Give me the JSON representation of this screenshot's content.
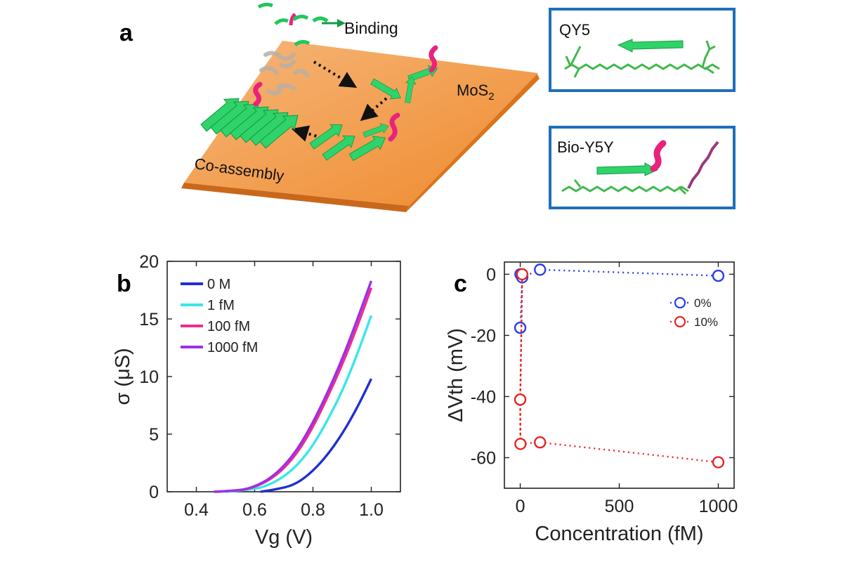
{
  "panel_a": {
    "letter": "a",
    "binding_label": "Binding",
    "substrate_label": "MoS",
    "substrate_subscript": "2",
    "coassembly_label": "Co-assembly",
    "box1_title": "QY5",
    "box2_title": "Bio-Y5Y",
    "colors": {
      "peptide": "#22c75a",
      "biotin": "#e8237d",
      "substrate": "#f0913a",
      "frame": "#1f6fb8"
    }
  },
  "panel_b": {
    "letter": "b"
  },
  "panel_c": {
    "letter": "c"
  },
  "chart_data": [
    {
      "id": "b",
      "type": "line",
      "xlabel": "Vg (V)",
      "ylabel": "σ (μS)",
      "xlim": [
        0.3,
        1.1
      ],
      "ylim": [
        0,
        20
      ],
      "xticks": [
        0.4,
        0.6,
        0.8,
        1.0
      ],
      "xtick_labels": [
        "0.4",
        "0.6",
        "0.8",
        "1.0"
      ],
      "yticks": [
        0,
        5,
        10,
        15,
        20
      ],
      "ytick_labels": [
        "0",
        "5",
        "10",
        "15",
        "20"
      ],
      "grid": false,
      "legend_position": "top-left",
      "series": [
        {
          "name": "0 M",
          "color": "#1f2fd4",
          "x": [
            0.62,
            0.7,
            0.75,
            0.8,
            0.85,
            0.9,
            0.95,
            1.0
          ],
          "y": [
            0.0,
            0.3,
            0.8,
            1.8,
            3.2,
            5.0,
            7.2,
            9.8
          ]
        },
        {
          "name": "1 fM",
          "color": "#38e6ea",
          "x": [
            0.5,
            0.6,
            0.65,
            0.7,
            0.75,
            0.8,
            0.85,
            0.9,
            0.95,
            1.0
          ],
          "y": [
            0.0,
            0.2,
            0.6,
            1.3,
            2.4,
            4.0,
            6.2,
            8.7,
            11.8,
            15.3
          ]
        },
        {
          "name": "100 fM",
          "color": "#ee2d8e",
          "x": [
            0.47,
            0.55,
            0.6,
            0.65,
            0.7,
            0.75,
            0.8,
            0.85,
            0.9,
            0.95,
            1.0
          ],
          "y": [
            0.0,
            0.1,
            0.4,
            1.0,
            2.0,
            3.5,
            5.6,
            8.2,
            11.0,
            14.2,
            17.7
          ]
        },
        {
          "name": "1000 fM",
          "color": "#9b30e8",
          "x": [
            0.46,
            0.55,
            0.6,
            0.65,
            0.7,
            0.75,
            0.8,
            0.85,
            0.9,
            0.95,
            1.0
          ],
          "y": [
            0.0,
            0.1,
            0.45,
            1.1,
            2.2,
            3.8,
            6.0,
            8.6,
            11.5,
            14.8,
            18.3
          ]
        }
      ]
    },
    {
      "id": "c",
      "type": "scatter",
      "xlabel": "Concentration (fM)",
      "ylabel": "ΔVth (mV)",
      "xlim": [
        -80,
        1080
      ],
      "ylim": [
        -70,
        4
      ],
      "xticks": [
        0,
        500,
        1000
      ],
      "xtick_labels": [
        "0",
        "500",
        "1000"
      ],
      "yticks": [
        0,
        -20,
        -40,
        -60
      ],
      "ytick_labels": [
        "0",
        "-20",
        "-40",
        "-60"
      ],
      "grid": false,
      "legend_position": "top-right",
      "line_style": "dotted",
      "series": [
        {
          "name": "0%",
          "color": "#2a3ee8",
          "x": [
            0,
            1,
            10,
            100,
            1000
          ],
          "y": [
            -17.5,
            0,
            -1,
            1.5,
            -0.5
          ]
        },
        {
          "name": "10%",
          "color": "#e82424",
          "x": [
            0,
            1,
            10,
            100,
            1000
          ],
          "y": [
            -41,
            -55.5,
            0,
            -55,
            -61.5
          ]
        }
      ]
    }
  ]
}
